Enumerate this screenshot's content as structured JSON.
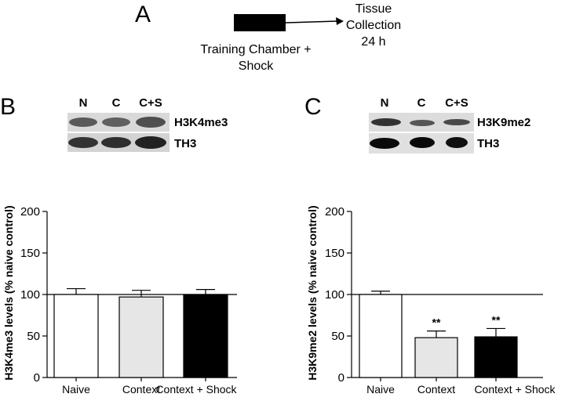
{
  "panels": {
    "a": "A",
    "b": "B",
    "c": "C"
  },
  "timeline": {
    "left_lines": [
      "Training Chamber +",
      "Shock"
    ],
    "right_lines": [
      "Tissue",
      "Collection",
      "24 h"
    ]
  },
  "blot_b": {
    "lanes": [
      "N",
      "C",
      "C+S"
    ],
    "rows": [
      "H3K4me3",
      "TH3"
    ]
  },
  "blot_c": {
    "lanes": [
      "N",
      "C",
      "C+S"
    ],
    "rows": [
      "H3K9me2",
      "TH3"
    ]
  },
  "colors": {
    "naive": "#ffffff",
    "context": "#e6e6e6",
    "context_shock": "#000000"
  },
  "chart_data": [
    {
      "type": "bar",
      "ylabel": "H3K4me3 levels (% naive control)",
      "categories": [
        "Naive",
        "Context",
        "Context + Shock"
      ],
      "values": [
        100,
        97,
        100
      ],
      "errors": [
        7,
        8,
        6
      ],
      "significance": [
        "",
        "",
        ""
      ],
      "ylim": [
        0,
        200
      ],
      "yticks": [
        0,
        50,
        100,
        150,
        200
      ],
      "reference_line": 100
    },
    {
      "type": "bar",
      "ylabel": "H3K9me2 levels (% naive control)",
      "categories": [
        "Naive",
        "Context",
        "Context + Shock"
      ],
      "values": [
        100,
        48,
        49
      ],
      "errors": [
        4,
        8,
        10
      ],
      "significance": [
        "",
        "**",
        "**"
      ],
      "ylim": [
        0,
        200
      ],
      "yticks": [
        0,
        50,
        100,
        150,
        200
      ],
      "reference_line": 100
    }
  ]
}
